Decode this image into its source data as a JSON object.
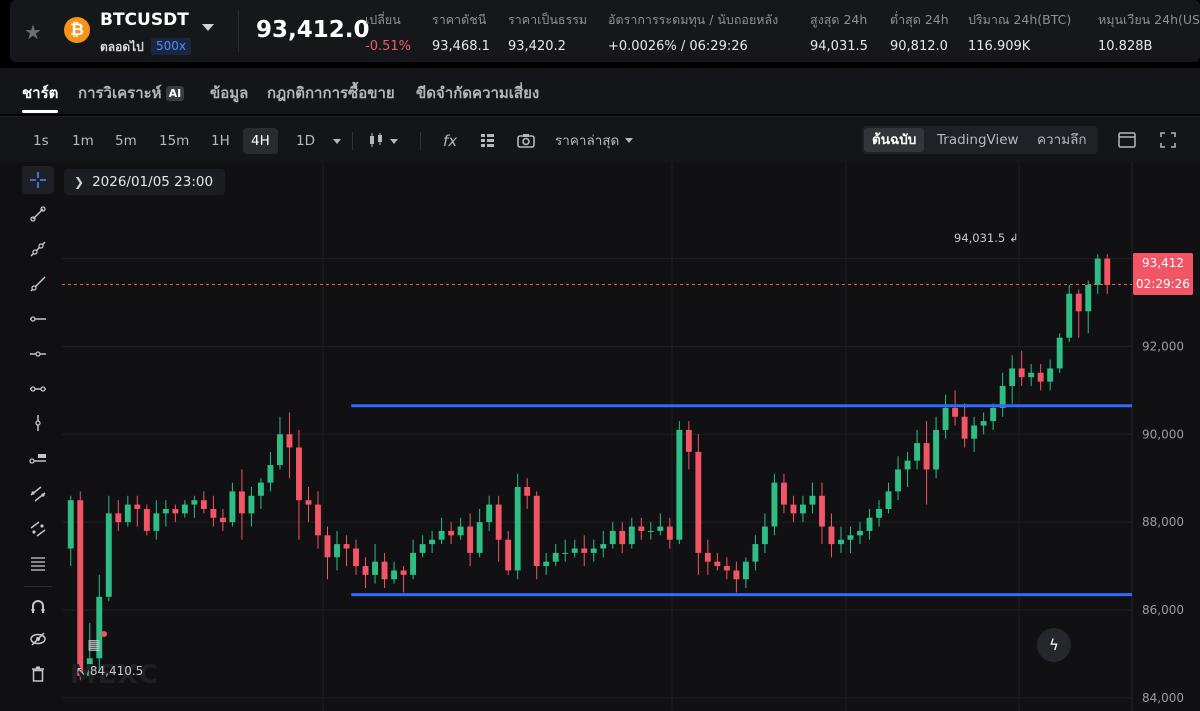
{
  "ticker": {
    "symbol": "BTCUSDT",
    "coin_icon": "bitcoin-icon",
    "contract": "ตลอดไป",
    "leverage": "500x",
    "last_price": "93,412.0",
    "stats": [
      {
        "label": "เปลี่ยน",
        "value": "-0.51%",
        "negative": true
      },
      {
        "label": "ราคาดัชนี",
        "value": "93,468.1"
      },
      {
        "label": "ราคาเป็นธรรม",
        "value": "93,420.2"
      },
      {
        "label": "อัตราการระดมทุน / นับถอยหลัง",
        "value": "+0.0026% / 06:29:26"
      },
      {
        "label": "สูงสุด 24h",
        "value": "94,031.5"
      },
      {
        "label": "ต่ำสุด 24h",
        "value": "90,812.0"
      },
      {
        "label": "ปริมาณ 24h(BTC)",
        "value": "116.909K"
      },
      {
        "label": "หมุนเวียน 24h(US",
        "value": "10.828B"
      }
    ]
  },
  "tabs": [
    {
      "label": "ชาร์ต",
      "active": true
    },
    {
      "label": "การวิเคราะห์",
      "badge": "AI"
    },
    {
      "label": "ข้อมูล"
    },
    {
      "label": "กฎกติกาการซื้อขาย"
    },
    {
      "label": "ขีดจำกัดความเสี่ยง"
    }
  ],
  "toolbar": {
    "timeframes": [
      "1s",
      "1m",
      "5m",
      "15m",
      "1H",
      "4H",
      "1D"
    ],
    "active_timeframe": "4H",
    "price_source": "ราคาล่าสุด",
    "views": [
      "ต้นฉบับ",
      "TradingView",
      "ความลึก"
    ],
    "active_view": "ต้นฉบับ"
  },
  "chart": {
    "cursor_date": "2026/01/05 23:00",
    "current_price": "93,412",
    "countdown": "02:29:26",
    "peak_label": "94,031.5",
    "low_label": "84,410.5",
    "watermark": "MEXC",
    "colors": {
      "up": "#2ebd85",
      "down": "#f25563",
      "level_line": "#2f6bff"
    }
  },
  "chart_data": {
    "type": "candlestick",
    "symbol": "BTCUSDT",
    "interval": "4H",
    "ylim": [
      83700,
      96200
    ],
    "y_ticks": [
      84000,
      86000,
      88000,
      90000,
      92000,
      94000
    ],
    "current_price": 93412,
    "horizontal_levels": [
      90650,
      86350
    ],
    "annotations": [
      {
        "text": "94,031.5",
        "price": 94031.5,
        "type": "high"
      },
      {
        "text": "84,410.5",
        "price": 84410.5,
        "type": "low"
      }
    ],
    "candles": [
      [
        87400,
        88500,
        88600,
        87000
      ],
      [
        88500,
        84500,
        88700,
        84400
      ],
      [
        84500,
        84900,
        85700,
        84500
      ],
      [
        84900,
        86300,
        86800,
        84600
      ],
      [
        86300,
        88200,
        88600,
        86200
      ],
      [
        88200,
        88000,
        88500,
        87800
      ],
      [
        88000,
        88400,
        88600,
        87900
      ],
      [
        88400,
        88300,
        88600,
        87900
      ],
      [
        88300,
        87800,
        88400,
        87700
      ],
      [
        87800,
        88200,
        88500,
        87600
      ],
      [
        88200,
        88300,
        88500,
        87900
      ],
      [
        88300,
        88200,
        88400,
        88000
      ],
      [
        88200,
        88400,
        88500,
        88100
      ],
      [
        88400,
        88500,
        88600,
        88100
      ],
      [
        88500,
        88300,
        88700,
        88200
      ],
      [
        88300,
        88100,
        88600,
        87900
      ],
      [
        88100,
        88000,
        88300,
        87800
      ],
      [
        88000,
        88700,
        88900,
        87900
      ],
      [
        88700,
        88200,
        89200,
        87600
      ],
      [
        88200,
        88600,
        88800,
        87900
      ],
      [
        88600,
        88900,
        89000,
        88300
      ],
      [
        88900,
        89300,
        89600,
        88700
      ],
      [
        89300,
        90000,
        90400,
        89200
      ],
      [
        90000,
        89700,
        90500,
        89000
      ],
      [
        89700,
        88500,
        90100,
        87600
      ],
      [
        88500,
        88400,
        88800,
        88000
      ],
      [
        88400,
        87700,
        88700,
        87400
      ],
      [
        87700,
        87200,
        87900,
        86700
      ],
      [
        87200,
        87500,
        87800,
        86900
      ],
      [
        87500,
        87400,
        87700,
        87000
      ],
      [
        87400,
        87000,
        87600,
        86800
      ],
      [
        87000,
        86800,
        87200,
        86500
      ],
      [
        86800,
        87100,
        87500,
        86600
      ],
      [
        87100,
        86700,
        87300,
        86500
      ],
      [
        86700,
        86900,
        87100,
        86600
      ],
      [
        86900,
        86800,
        87000,
        86400
      ],
      [
        86800,
        87300,
        87600,
        86700
      ],
      [
        87300,
        87500,
        87700,
        87200
      ],
      [
        87500,
        87600,
        87800,
        87300
      ],
      [
        87600,
        87800,
        88100,
        87500
      ],
      [
        87800,
        87700,
        88000,
        87500
      ],
      [
        87700,
        87900,
        88100,
        87600
      ],
      [
        87900,
        87300,
        88200,
        87000
      ],
      [
        87300,
        88000,
        88300,
        87200
      ],
      [
        88000,
        88400,
        88600,
        87800
      ],
      [
        88400,
        87600,
        88600,
        87100
      ],
      [
        87600,
        86900,
        87800,
        86800
      ],
      [
        86900,
        88800,
        89100,
        86700
      ],
      [
        88800,
        88600,
        89000,
        88300
      ],
      [
        88600,
        87000,
        88700,
        86700
      ],
      [
        87000,
        87100,
        87300,
        86800
      ],
      [
        87100,
        87300,
        87500,
        87000
      ],
      [
        87300,
        87300,
        87600,
        87100
      ],
      [
        87300,
        87400,
        87600,
        87200
      ],
      [
        87400,
        87300,
        87700,
        87000
      ],
      [
        87300,
        87400,
        87600,
        87100
      ],
      [
        87400,
        87500,
        87800,
        87200
      ],
      [
        87500,
        87800,
        88000,
        87400
      ],
      [
        87800,
        87500,
        88000,
        87300
      ],
      [
        87500,
        87900,
        88100,
        87400
      ],
      [
        87900,
        87800,
        88100,
        87600
      ],
      [
        87800,
        87800,
        88000,
        87600
      ],
      [
        87800,
        87900,
        88200,
        87700
      ],
      [
        87900,
        87600,
        88100,
        87400
      ],
      [
        87600,
        90100,
        90300,
        87500
      ],
      [
        90100,
        89600,
        90300,
        89200
      ],
      [
        89600,
        87300,
        90000,
        86800
      ],
      [
        87300,
        87100,
        87600,
        86800
      ],
      [
        87100,
        87000,
        87300,
        86900
      ],
      [
        87000,
        86900,
        87200,
        86700
      ],
      [
        86900,
        86700,
        87100,
        86400
      ],
      [
        86700,
        87100,
        87200,
        86500
      ],
      [
        87100,
        87500,
        87700,
        86900
      ],
      [
        87500,
        87900,
        88200,
        87300
      ],
      [
        87900,
        88900,
        89100,
        87700
      ],
      [
        88900,
        88400,
        89100,
        88200
      ],
      [
        88400,
        88200,
        88600,
        88000
      ],
      [
        88200,
        88400,
        88600,
        88000
      ],
      [
        88400,
        88600,
        88900,
        88200
      ],
      [
        88600,
        87900,
        88900,
        87500
      ],
      [
        87900,
        87500,
        88200,
        87200
      ],
      [
        87500,
        87600,
        87900,
        87300
      ],
      [
        87600,
        87700,
        87900,
        87300
      ],
      [
        87700,
        87800,
        88000,
        87500
      ],
      [
        87800,
        88100,
        88300,
        87600
      ],
      [
        88100,
        88300,
        88500,
        87900
      ],
      [
        88300,
        88700,
        88900,
        88200
      ],
      [
        88700,
        89200,
        89500,
        88500
      ],
      [
        89200,
        89400,
        89600,
        88800
      ],
      [
        89400,
        89800,
        90100,
        89200
      ],
      [
        89800,
        89200,
        90300,
        88400
      ],
      [
        89200,
        90100,
        90400,
        89000
      ],
      [
        90100,
        90600,
        90900,
        89900
      ],
      [
        90600,
        90400,
        91000,
        90200
      ],
      [
        90400,
        89900,
        90700,
        89700
      ],
      [
        89900,
        90200,
        90400,
        89600
      ],
      [
        90200,
        90300,
        90500,
        90000
      ],
      [
        90300,
        90600,
        90700,
        90100
      ],
      [
        90600,
        91100,
        91400,
        90400
      ],
      [
        91100,
        91500,
        91800,
        90700
      ],
      [
        91500,
        91300,
        91900,
        91100
      ],
      [
        91300,
        91400,
        91600,
        91100
      ],
      [
        91400,
        91200,
        91600,
        91000
      ],
      [
        91200,
        91500,
        91700,
        91000
      ],
      [
        91500,
        92200,
        92300,
        91400
      ],
      [
        92200,
        93200,
        93400,
        92100
      ],
      [
        93200,
        92800,
        93300,
        92200
      ],
      [
        92800,
        93400,
        93500,
        92300
      ],
      [
        93400,
        94000,
        94100,
        93200
      ],
      [
        94000,
        93400,
        94100,
        93200
      ]
    ]
  }
}
